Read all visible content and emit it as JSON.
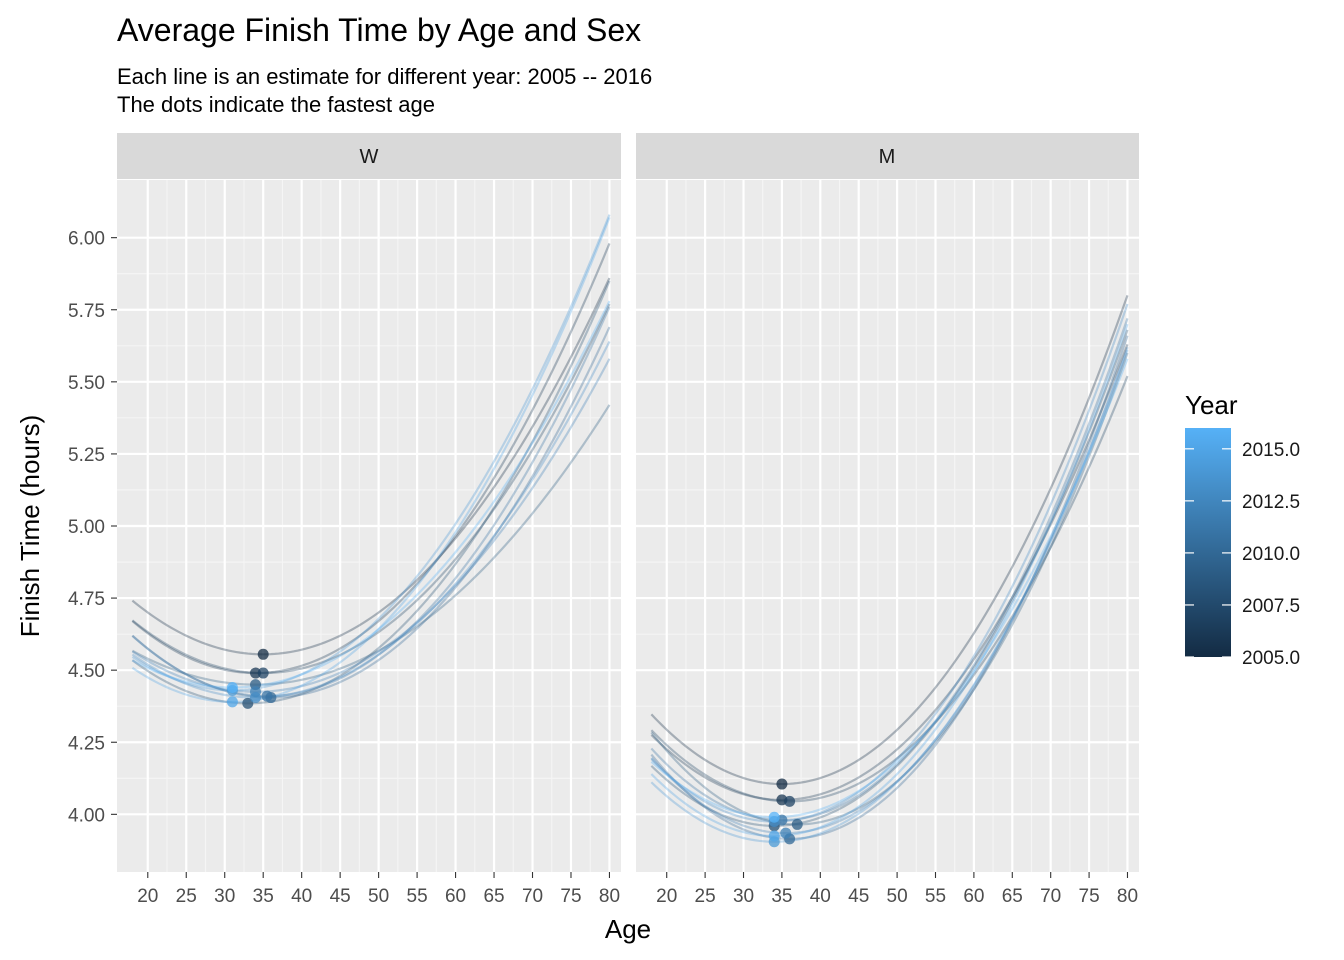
{
  "chart_data": {
    "type": "line",
    "title": "Average Finish Time by Age and Sex",
    "subtitle_lines": [
      "Each line is an estimate for different year: 2005 -- 2016",
      "The dots indicate the fastest age"
    ],
    "xlabel": "Age",
    "ylabel": "Finish Time (hours)",
    "xlim": [
      16,
      81.5
    ],
    "ylim": [
      3.8,
      6.2
    ],
    "x_ticks": [
      20,
      25,
      30,
      35,
      40,
      45,
      50,
      55,
      60,
      65,
      70,
      75,
      80
    ],
    "x_tick_labels": [
      "20",
      "25",
      "30",
      "35",
      "40",
      "45",
      "50",
      "55",
      "60",
      "65",
      "70",
      "75",
      "80"
    ],
    "y_ticks": [
      4.0,
      4.25,
      4.5,
      4.75,
      5.0,
      5.25,
      5.5,
      5.75,
      6.0
    ],
    "y_tick_labels": [
      "4.00",
      "4.25",
      "4.50",
      "4.75",
      "5.00",
      "5.25",
      "5.50",
      "5.75",
      "6.00"
    ],
    "grid": true,
    "x_range": [
      18,
      80
    ],
    "legend": {
      "title": "Year",
      "position": "right",
      "range": [
        2005,
        2016
      ],
      "color_low": "#132B43",
      "color_high": "#56B1F7",
      "ticks": [
        2005.0,
        2007.5,
        2010.0,
        2012.5,
        2015.0
      ],
      "tick_labels": [
        "2005.0",
        "2007.5",
        "2010.0",
        "2012.5",
        "2015.0"
      ]
    },
    "panels": [
      {
        "label": "W",
        "series": [
          {
            "year": 2005,
            "min_age": 35.0,
            "min_time": 4.555,
            "end_time": 5.86
          },
          {
            "year": 2006,
            "min_age": 34.0,
            "min_time": 4.49,
            "end_time": 5.98
          },
          {
            "year": 2007,
            "min_age": 35.0,
            "min_time": 4.49,
            "end_time": 5.77
          },
          {
            "year": 2008,
            "min_age": 33.0,
            "min_time": 4.385,
            "end_time": 5.85
          },
          {
            "year": 2009,
            "min_age": 34.0,
            "min_time": 4.45,
            "end_time": 5.42
          },
          {
            "year": 2010,
            "min_age": 36.0,
            "min_time": 4.405,
            "end_time": 5.69
          },
          {
            "year": 2011,
            "min_age": 35.5,
            "min_time": 4.41,
            "end_time": 5.76
          },
          {
            "year": 2012,
            "min_age": 34.0,
            "min_time": 4.425,
            "end_time": 5.58
          },
          {
            "year": 2013,
            "min_age": 34.0,
            "min_time": 4.405,
            "end_time": 5.64
          },
          {
            "year": 2014,
            "min_age": 31.0,
            "min_time": 4.43,
            "end_time": 6.08
          },
          {
            "year": 2015,
            "min_age": 31.0,
            "min_time": 4.39,
            "end_time": 6.07
          },
          {
            "year": 2016,
            "min_age": 31.0,
            "min_time": 4.44,
            "end_time": 5.78
          }
        ]
      },
      {
        "label": "M",
        "series": [
          {
            "year": 2005,
            "min_age": 35.0,
            "min_time": 4.105,
            "end_time": 5.8
          },
          {
            "year": 2006,
            "min_age": 35.0,
            "min_time": 4.05,
            "end_time": 5.63
          },
          {
            "year": 2007,
            "min_age": 36.0,
            "min_time": 4.045,
            "end_time": 5.52
          },
          {
            "year": 2008,
            "min_age": 34.0,
            "min_time": 3.96,
            "end_time": 5.68
          },
          {
            "year": 2009,
            "min_age": 37.0,
            "min_time": 3.965,
            "end_time": 5.6
          },
          {
            "year": 2010,
            "min_age": 36.0,
            "min_time": 3.915,
            "end_time": 5.66
          },
          {
            "year": 2011,
            "min_age": 35.0,
            "min_time": 3.98,
            "end_time": 5.72
          },
          {
            "year": 2012,
            "min_age": 35.5,
            "min_time": 3.935,
            "end_time": 5.62
          },
          {
            "year": 2013,
            "min_age": 34.0,
            "min_time": 3.975,
            "end_time": 5.77
          },
          {
            "year": 2014,
            "min_age": 34.0,
            "min_time": 3.905,
            "end_time": 5.61
          },
          {
            "year": 2015,
            "min_age": 34.0,
            "min_time": 3.925,
            "end_time": 5.7
          },
          {
            "year": 2016,
            "min_age": 34.0,
            "min_time": 3.99,
            "end_time": 5.58
          }
        ]
      }
    ]
  }
}
